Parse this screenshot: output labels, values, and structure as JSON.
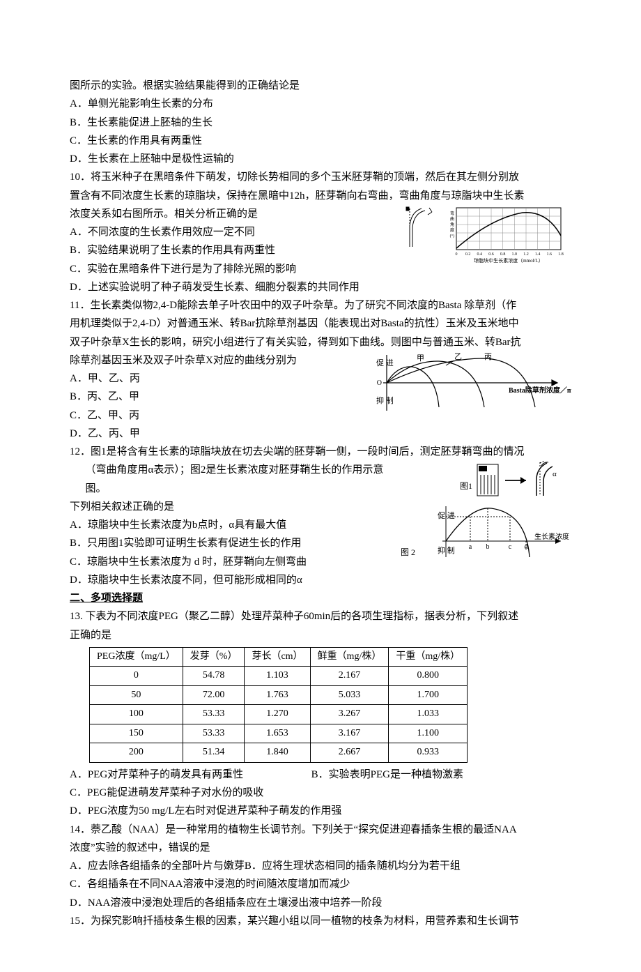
{
  "intro_line": "图所示的实验。根据实验结果能得到的正确结论是",
  "intro_opts": {
    "A": "A．单侧光能影响生长素的分布",
    "B": "B．生长素能促进上胚轴的生长",
    "C": "C．生长素的作用具有两重性",
    "D": "D．生长素在上胚轴中是极性运输的"
  },
  "q10": {
    "stem1": "10．将玉米种子在黑暗条件下萌发，切除长势相同的多个玉米胚芽鞘的顶端，然后在其左侧分别放",
    "stem2": "置含有不同浓度生长素的琼脂块，保持在黑暗中12h，胚芽鞘向右弯曲，弯曲角度与琼脂块中生长素",
    "stem3": "浓度关系如右图所示。相关分析正确的是",
    "A": "A．不同浓度的生长素作用效应一定不同",
    "B": "B．实验结果说明了生长素的作用具有两重性",
    "C": "C．实验在黑暗条件下进行是为了排除光照的影响",
    "D": "D．上述实验说明了种子萌发受生长素、细胞分裂素的共同作用",
    "fig": {
      "bg": "#ffffff",
      "axis": "#000000",
      "grid": "#888888",
      "curve": "#000000",
      "xticks": [
        "0",
        "0.2",
        "0.4",
        "0.6",
        "0.8",
        "1.0",
        "1.2",
        "1.4",
        "1.6",
        "1.8"
      ],
      "xlabel": "琼脂块中生长素浓度（mmol/L）",
      "ylabel": "弯曲角度(°)"
    }
  },
  "q11": {
    "stem1": "11．生长素类似物2,4-D能除去单子叶农田中的双子叶杂草。为了研究不同浓度的Basta 除草剂（作",
    "stem2": "用机理类似于2,4-D）对普通玉米、转Bar抗除草剂基因（能表现出对Basta的抗性）玉米及玉米地中",
    "stem3": "双子叶杂草X生长的影响，研究小组进行了有关实验，得到如下曲线。则图中与普通玉米、转Bar抗",
    "stem4": "除草剂基因玉米及双子叶杂草X对应的曲线分别为",
    "A": "A．甲、乙、丙",
    "B": "B．丙、乙、甲",
    "C": "C．乙、甲、丙",
    "D": "D．乙、丙、甲",
    "fig": {
      "bg": "#ffffff",
      "axis": "#000000",
      "labels": {
        "l1": "甲",
        "l2": "乙",
        "l3": "丙",
        "y_top": "促 进",
        "y_bot": "抑 制"
      },
      "xlabel": "Basta除草剂浓度／mol·L⁻¹"
    }
  },
  "q12": {
    "stem1": "12．图1是将含有生长素的琼脂块放在切去尖端的胚芽鞘一侧，一段时间后，测定胚芽鞘弯曲的情况",
    "stem2": "（弯曲角度用α表示）；图2是生长素浓度对胚芽鞘生长的作用示意图。",
    "stem3": "下列相关叙述正确的是",
    "A": "A．琼脂块中生长素浓度为b点时，α具有最大值",
    "B": "B．只用图1实验即可证明生长素有促进生长的作用",
    "C": "C．琼脂块中生长素浓度为 d 时，胚芽鞘向左侧弯曲",
    "D": "D．琼脂块中生长素浓度不同，但可能形成相同的α",
    "fig": {
      "label1": "图1",
      "label2": "图 2",
      "alpha": "α",
      "xlabel": "生长素浓度",
      "y_top": "促 进",
      "y_bot": "抑 制",
      "ticks": [
        "a",
        "b",
        "c",
        "d"
      ],
      "axis": "#000000"
    }
  },
  "section2": "二、多项选择题",
  "q13": {
    "stem1": "13.  下表为不同浓度PEG（聚乙二醇）处理芹菜种子60min后的各项生理指标，据表分析，下列叙述",
    "stem2": "正确的是",
    "table": {
      "columns": [
        "PEG浓度（mg/L）",
        "发芽（%）",
        "芽长（cm）",
        "鲜重（mg/株）",
        "干重（mg/株）"
      ],
      "rows": [
        [
          "0",
          "54.78",
          "1.103",
          "2.167",
          "0.800"
        ],
        [
          "50",
          "72.00",
          "1.763",
          "5.033",
          "1.700"
        ],
        [
          "100",
          "53.33",
          "1.270",
          "3.267",
          "1.033"
        ],
        [
          "150",
          "53.33",
          "1.653",
          "3.167",
          "1.100"
        ],
        [
          "200",
          "51.34",
          "1.840",
          "2.667",
          "0.933"
        ]
      ]
    },
    "A": "A．PEG对芹菜种子的萌发具有两重性",
    "B": "B．实验表明PEG是一种植物激素",
    "C": "C．PEG能促进萌发芹菜种子对水份的吸收",
    "D": "D．PEG浓度为50 mg/L左右时对促进芹菜种子萌发的作用强"
  },
  "q14": {
    "stem1": "14．萘乙酸（NAA）是一种常用的植物生长调节剂。下列关于“探究促进迎春插条生根的最适NAA",
    "stem2": "浓度”实验的叙述中，错误的是",
    "A": "A．应去除各组插条的全部叶片与嫩芽B．应将生理状态相同的插条随机均分为若干组",
    "C": "C．各组插条在不同NAA溶液中浸泡的时间随浓度增加而减少",
    "D": "D．NAA溶液中浸泡处理后的各组插条应在土壤浸出液中培养一阶段"
  },
  "q15": {
    "stem": "15．为探究影响扦插枝条生根的因素，某兴趣小组以同一植物的枝条为材料，用营养素和生长调节"
  }
}
